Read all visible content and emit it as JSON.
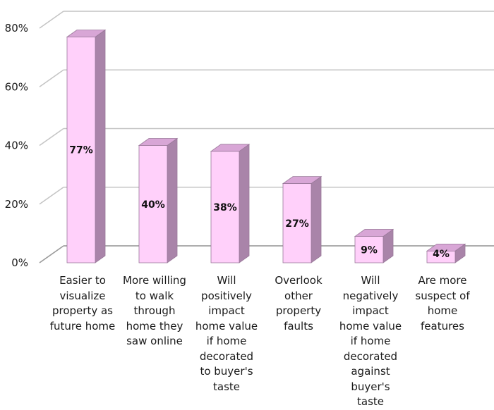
{
  "chart_data": {
    "type": "bar",
    "title": "",
    "xlabel": "",
    "ylabel": "",
    "ylim": [
      0,
      80
    ],
    "yticks": [
      "0%",
      "20%",
      "40%",
      "60%",
      "80%"
    ],
    "grid": true,
    "categories": [
      "Easier to\nvisualize\nproperty as\nfuture home",
      "More willing\nto walk\nthrough\nhome they\nsaw online",
      "Will\npositively\nimpact\nhome value\nif home\ndecorated\nto buyer's\ntaste",
      "Overlook\nother\nproperty\nfaults",
      "Will\nnegatively\nimpact\nhome value\nif home\ndecorated\nagainst\nbuyer's\ntaste",
      "Are more\nsuspect of\nhome\nfeatures"
    ],
    "values": [
      77,
      40,
      38,
      27,
      9,
      4
    ],
    "data_labels": [
      "77%",
      "40%",
      "38%",
      "27%",
      "9%",
      "4%"
    ],
    "colors": {
      "front": "#ffd0fa",
      "side": "#a984a9",
      "top": "#d8a6d6",
      "edge": "#9a789a",
      "grid": "#c4c4c4",
      "axis": "#9c9c9c"
    }
  }
}
